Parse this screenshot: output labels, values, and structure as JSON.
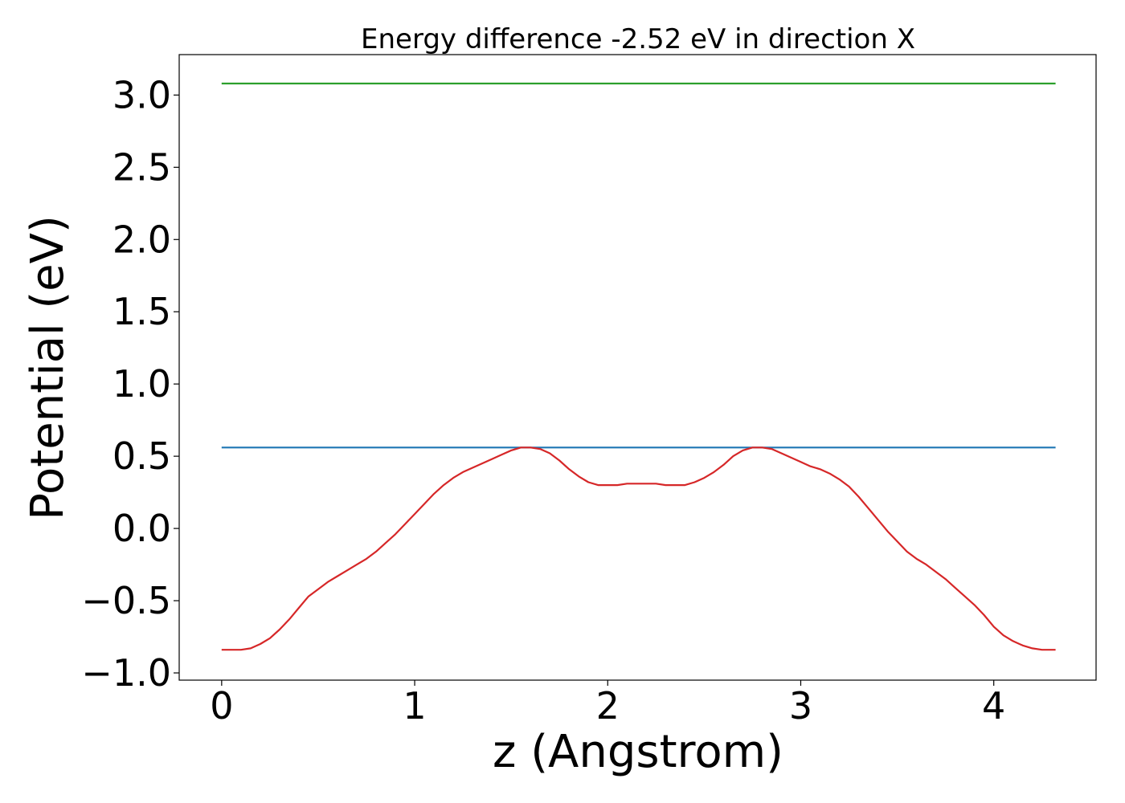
{
  "chart_data": {
    "type": "line",
    "title": "Energy difference -2.52 eV in direction X",
    "xlabel": "z (Angstrom)",
    "ylabel": "Potential (eV)",
    "xlim": [
      -0.22,
      4.53
    ],
    "ylim": [
      -1.05,
      3.28
    ],
    "xticks": [
      0,
      1,
      2,
      3,
      4
    ],
    "xtick_labels": [
      "0",
      "1",
      "2",
      "3",
      "4"
    ],
    "yticks": [
      -1.0,
      -0.5,
      0.0,
      0.5,
      1.0,
      1.5,
      2.0,
      2.5,
      3.0
    ],
    "ytick_labels": [
      "−1.0",
      "−0.5",
      "0.0",
      "0.5",
      "1.0",
      "1.5",
      "2.0",
      "2.5",
      "3.0"
    ],
    "grid": false,
    "series": [
      {
        "color": "#2ca02c",
        "x": [
          0,
          4.32
        ],
        "y": [
          3.08,
          3.08
        ]
      },
      {
        "color": "#1f77b4",
        "x": [
          0,
          4.32
        ],
        "y": [
          0.56,
          0.56
        ]
      },
      {
        "color": "#d62728",
        "x": [
          0,
          0.05,
          0.1,
          0.15,
          0.2,
          0.25,
          0.3,
          0.35,
          0.4,
          0.45,
          0.5,
          0.55,
          0.6,
          0.65,
          0.7,
          0.75,
          0.8,
          0.85,
          0.9,
          0.95,
          1.0,
          1.05,
          1.1,
          1.15,
          1.2,
          1.25,
          1.3,
          1.35,
          1.4,
          1.45,
          1.5,
          1.55,
          1.6,
          1.65,
          1.7,
          1.75,
          1.8,
          1.85,
          1.9,
          1.95,
          2.0,
          2.05,
          2.1,
          2.15,
          2.2,
          2.25,
          2.3,
          2.35,
          2.4,
          2.45,
          2.5,
          2.55,
          2.6,
          2.65,
          2.7,
          2.75,
          2.8,
          2.85,
          2.9,
          2.95,
          3.0,
          3.05,
          3.1,
          3.15,
          3.2,
          3.25,
          3.3,
          3.35,
          3.4,
          3.45,
          3.5,
          3.55,
          3.6,
          3.65,
          3.7,
          3.75,
          3.8,
          3.85,
          3.9,
          3.95,
          4.0,
          4.05,
          4.1,
          4.15,
          4.2,
          4.25,
          4.32
        ],
        "y": [
          -0.84,
          -0.84,
          -0.84,
          -0.83,
          -0.8,
          -0.76,
          -0.7,
          -0.63,
          -0.55,
          -0.47,
          -0.42,
          -0.37,
          -0.33,
          -0.29,
          -0.25,
          -0.21,
          -0.16,
          -0.1,
          -0.04,
          0.03,
          0.1,
          0.17,
          0.24,
          0.3,
          0.35,
          0.39,
          0.42,
          0.45,
          0.48,
          0.51,
          0.54,
          0.56,
          0.56,
          0.55,
          0.52,
          0.47,
          0.41,
          0.36,
          0.32,
          0.3,
          0.3,
          0.3,
          0.31,
          0.31,
          0.31,
          0.31,
          0.3,
          0.3,
          0.3,
          0.32,
          0.35,
          0.39,
          0.44,
          0.5,
          0.54,
          0.56,
          0.56,
          0.55,
          0.52,
          0.49,
          0.46,
          0.43,
          0.41,
          0.38,
          0.34,
          0.29,
          0.22,
          0.14,
          0.06,
          -0.02,
          -0.09,
          -0.16,
          -0.21,
          -0.25,
          -0.3,
          -0.35,
          -0.41,
          -0.47,
          -0.53,
          -0.6,
          -0.68,
          -0.74,
          -0.78,
          -0.81,
          -0.83,
          -0.84,
          -0.84
        ]
      }
    ]
  }
}
